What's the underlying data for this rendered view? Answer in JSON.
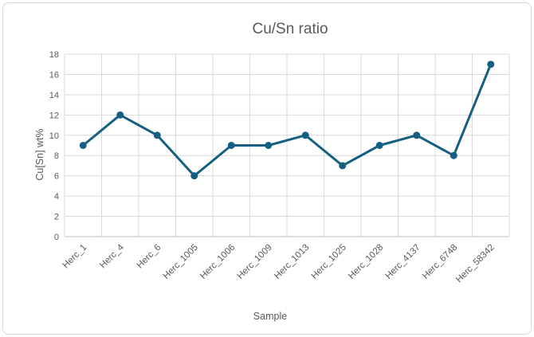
{
  "chart_data": {
    "type": "line",
    "title": "Cu/Sn ratio",
    "xlabel": "Sample",
    "ylabel": "Cu[Sn] wt%",
    "categories": [
      "Herc_1",
      "Herc_4",
      "Herc_6",
      "Herc_1005",
      "Herc_1006",
      "Herc_1009",
      "Herc_1013",
      "Herc_1025",
      "Herc_1028",
      "Herc_4137",
      "Herc_6748",
      "Herc_58342"
    ],
    "values": [
      9,
      12,
      10,
      6,
      9,
      9,
      10,
      7,
      9,
      10,
      8,
      17
    ],
    "ylim": [
      0,
      18
    ],
    "yticks": [
      0,
      2,
      4,
      6,
      8,
      10,
      12,
      14,
      16,
      18
    ],
    "grid": true,
    "legend": "none",
    "marker": "circle",
    "x_label_rotation_deg": 45
  },
  "colors": {
    "series": "#156082",
    "gridline": "#d9d9d9",
    "axis_line": "#bfbfbf",
    "text": "#595959",
    "frame_border": "#d9d9d9",
    "background": "#ffffff"
  }
}
